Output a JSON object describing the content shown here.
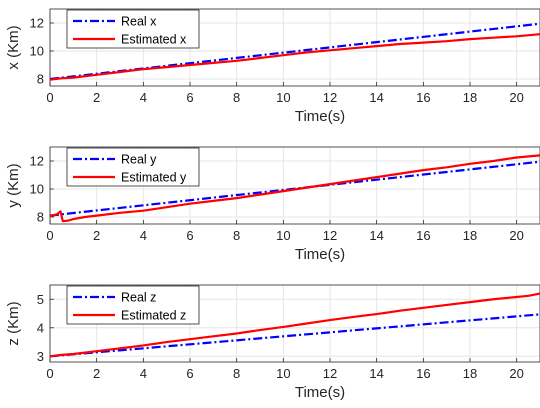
{
  "chart_data": [
    {
      "type": "line",
      "xlabel": "Time(s)",
      "ylabel": "x (Km)",
      "xlim": [
        0,
        21
      ],
      "ylim": [
        7.5,
        13
      ],
      "xticks": [
        0,
        2,
        4,
        6,
        8,
        10,
        12,
        14,
        16,
        18,
        20
      ],
      "yticks": [
        8,
        10,
        12
      ],
      "grid": true,
      "legend_position": "top-left",
      "series": [
        {
          "name": "Real x",
          "color": "#0000ff",
          "style": "dash-dot",
          "x": [
            0,
            21
          ],
          "y": [
            8.0,
            11.95
          ]
        },
        {
          "name": "Estimated x",
          "color": "#ff0000",
          "style": "solid",
          "x": [
            0,
            0.5,
            1,
            2,
            3,
            4,
            5,
            6,
            7,
            8,
            9,
            10,
            11,
            12,
            13,
            14,
            15,
            16,
            17,
            18,
            19,
            20,
            21
          ],
          "y": [
            7.95,
            8.05,
            8.1,
            8.3,
            8.5,
            8.7,
            8.85,
            9.0,
            9.15,
            9.3,
            9.5,
            9.7,
            9.9,
            10.05,
            10.2,
            10.35,
            10.5,
            10.6,
            10.7,
            10.85,
            10.95,
            11.05,
            11.2
          ]
        }
      ]
    },
    {
      "type": "line",
      "xlabel": "Time(s)",
      "ylabel": "y (Km)",
      "xlim": [
        0,
        21
      ],
      "ylim": [
        7.5,
        13
      ],
      "xticks": [
        0,
        2,
        4,
        6,
        8,
        10,
        12,
        14,
        16,
        18,
        20
      ],
      "yticks": [
        8,
        10,
        12
      ],
      "grid": true,
      "legend_position": "top-left",
      "series": [
        {
          "name": "Real y",
          "color": "#0000ff",
          "style": "dash-dot",
          "x": [
            0,
            21
          ],
          "y": [
            8.1,
            11.95
          ]
        },
        {
          "name": "Estimated y",
          "color": "#ff0000",
          "style": "solid",
          "x": [
            0,
            0.3,
            0.45,
            0.55,
            0.8,
            1,
            1.5,
            2,
            3,
            4,
            5,
            6,
            7,
            8,
            9,
            10,
            11,
            12,
            13,
            14,
            15,
            16,
            17,
            18,
            19,
            20,
            21
          ],
          "y": [
            8.05,
            8.2,
            8.4,
            7.7,
            7.75,
            7.85,
            8.0,
            8.1,
            8.3,
            8.45,
            8.7,
            8.95,
            9.15,
            9.35,
            9.6,
            9.85,
            10.1,
            10.35,
            10.6,
            10.85,
            11.1,
            11.35,
            11.55,
            11.8,
            12.0,
            12.25,
            12.4
          ]
        }
      ]
    },
    {
      "type": "line",
      "xlabel": "Time(s)",
      "ylabel": "z (Km)",
      "xlim": [
        0,
        21
      ],
      "ylim": [
        2.8,
        5.5
      ],
      "xticks": [
        0,
        2,
        4,
        6,
        8,
        10,
        12,
        14,
        16,
        18,
        20
      ],
      "yticks": [
        3,
        4,
        5
      ],
      "grid": true,
      "legend_position": "top-left",
      "series": [
        {
          "name": "Real z",
          "color": "#0000ff",
          "style": "dash-dot",
          "x": [
            0,
            21
          ],
          "y": [
            3.0,
            4.47
          ]
        },
        {
          "name": "Estimated z",
          "color": "#ff0000",
          "style": "solid",
          "x": [
            0,
            0.5,
            1,
            2,
            3,
            4,
            5,
            6,
            7,
            8,
            9,
            10,
            11,
            12,
            13,
            14,
            15,
            16,
            17,
            18,
            19,
            20,
            20.5,
            21
          ],
          "y": [
            3.0,
            3.05,
            3.08,
            3.18,
            3.28,
            3.38,
            3.5,
            3.6,
            3.7,
            3.8,
            3.92,
            4.03,
            4.15,
            4.27,
            4.38,
            4.48,
            4.6,
            4.7,
            4.8,
            4.9,
            5.0,
            5.08,
            5.12,
            5.2
          ]
        }
      ]
    }
  ]
}
